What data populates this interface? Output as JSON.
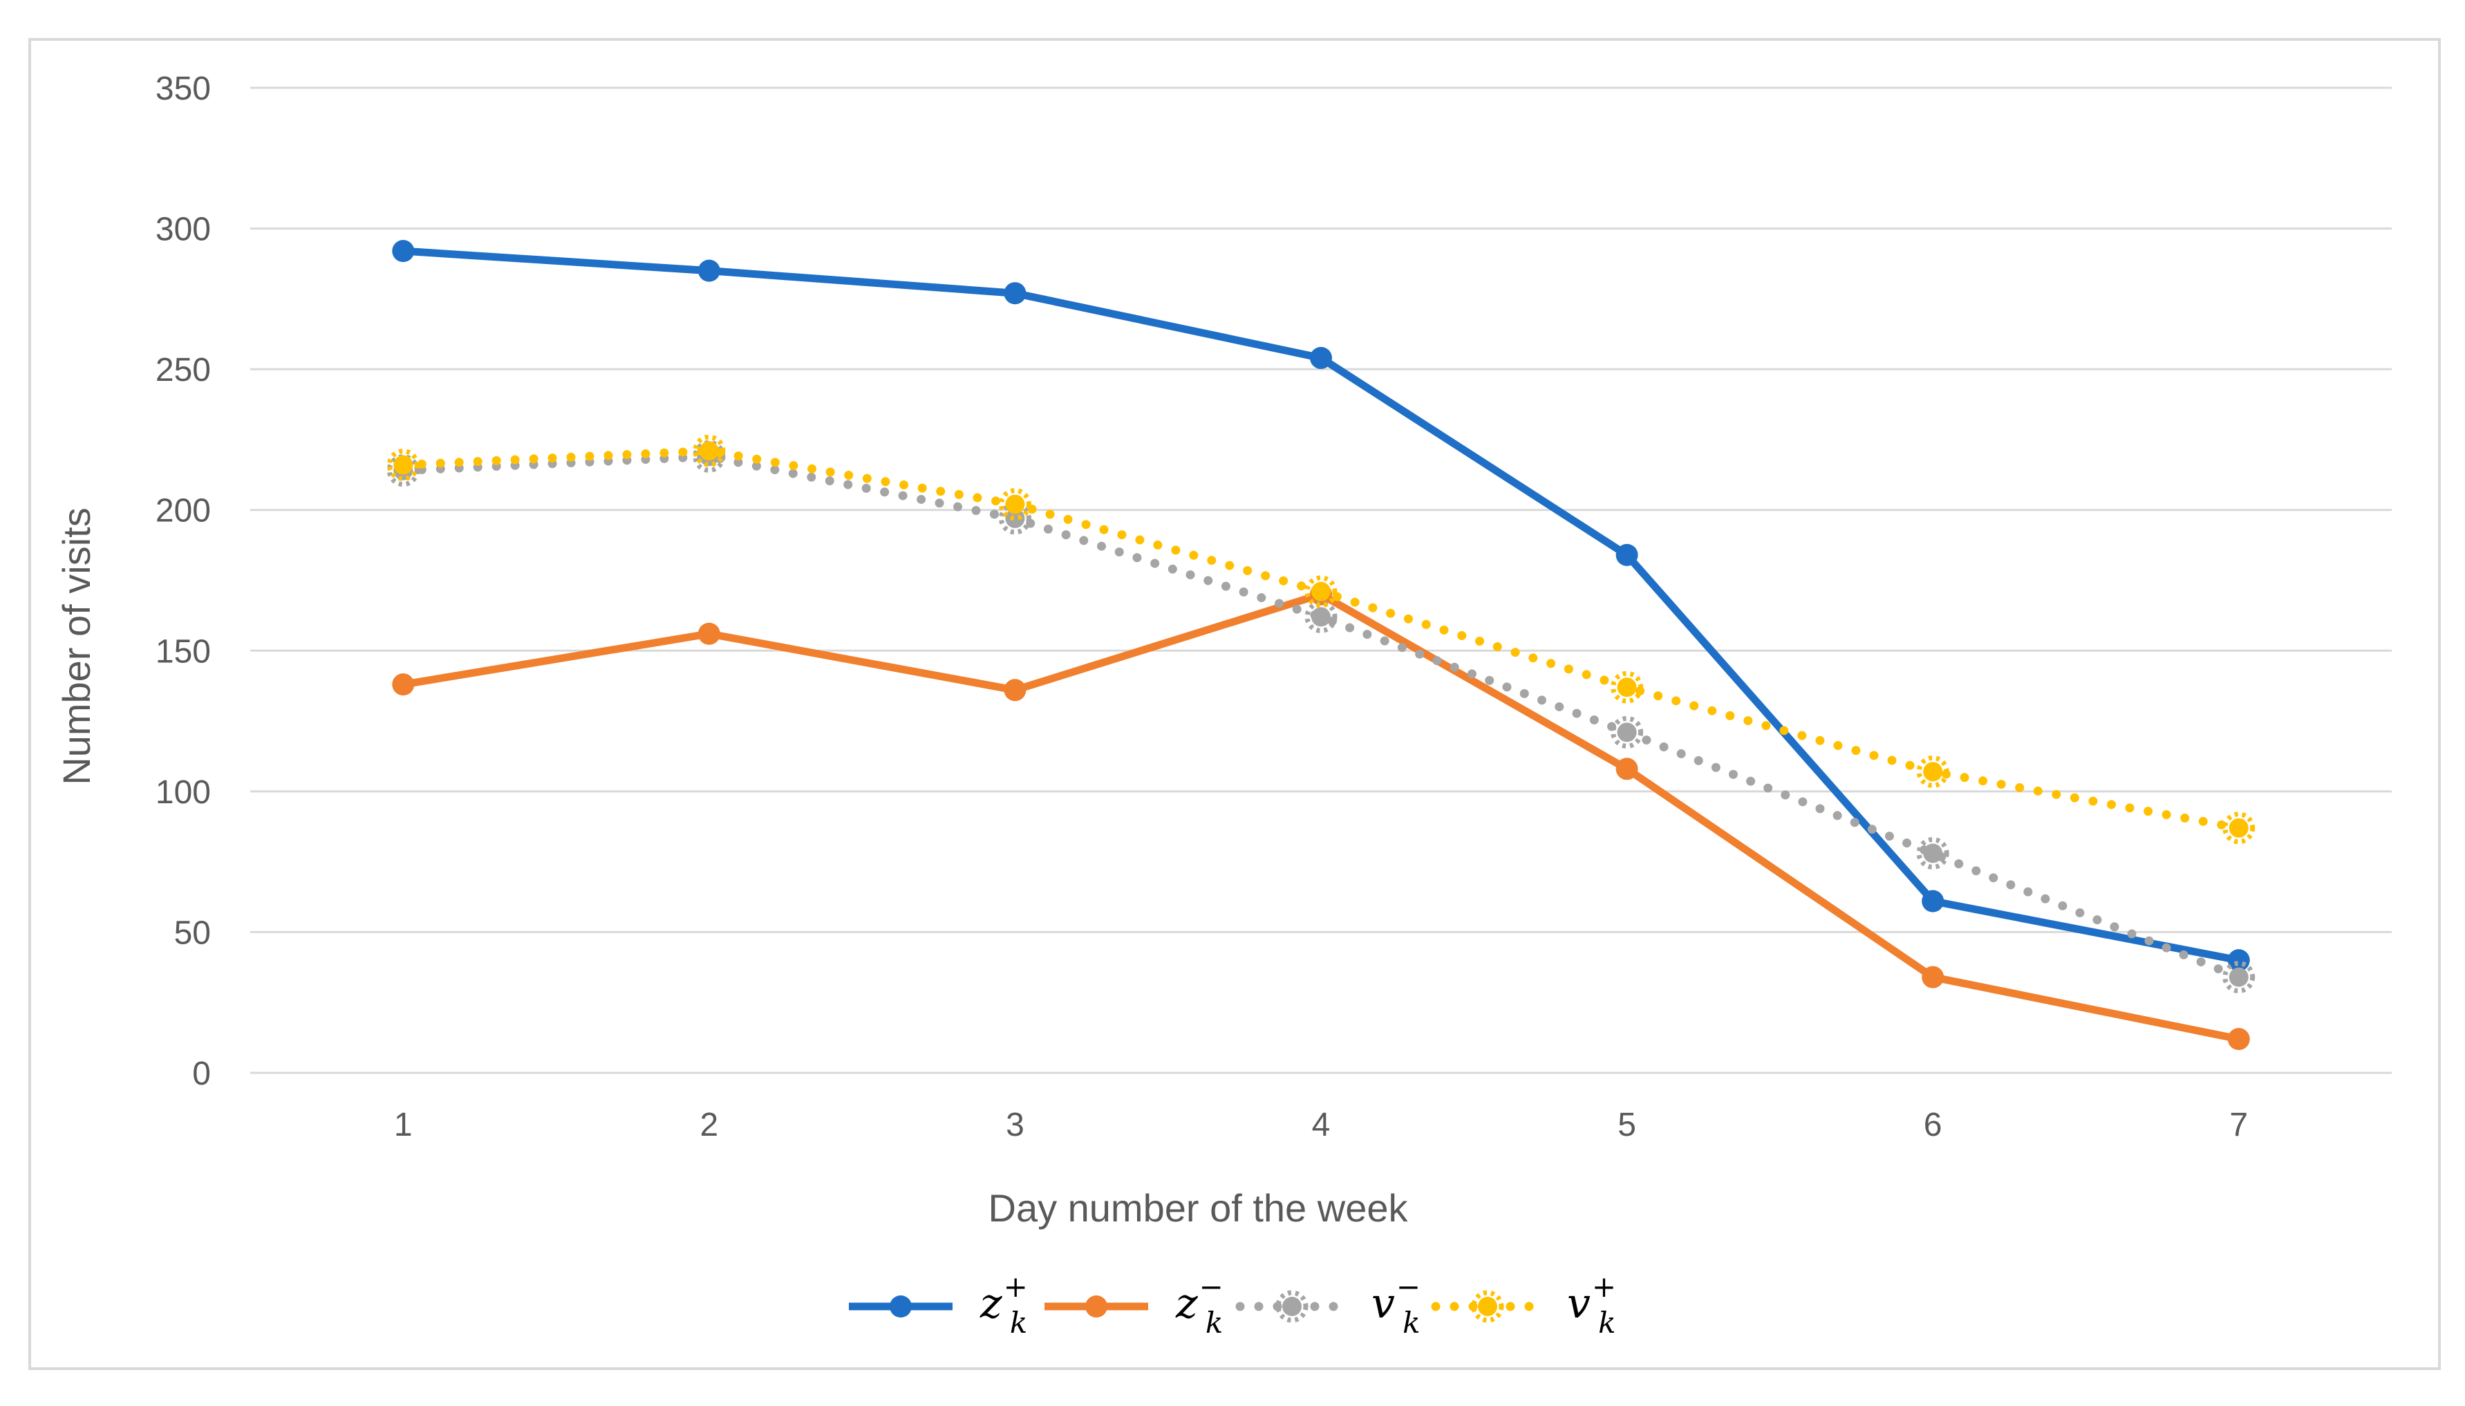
{
  "chart_data": {
    "type": "line",
    "title": "",
    "xlabel": "Day number of the week",
    "ylabel": "Number of visits",
    "categories": [
      "1",
      "2",
      "3",
      "4",
      "5",
      "6",
      "7"
    ],
    "ylim": [
      0,
      350
    ],
    "yticks": [
      0,
      50,
      100,
      150,
      200,
      250,
      300,
      350
    ],
    "grid": true,
    "legend_position": "bottom",
    "series": [
      {
        "name": "z_k^+",
        "symbol": "z",
        "sup": "+",
        "sub": "k",
        "color": "#1f6fc6",
        "style": "solid",
        "values": [
          292,
          285,
          277,
          254,
          184,
          61,
          40
        ]
      },
      {
        "name": "z_k^-",
        "symbol": "z",
        "sup": "−",
        "sub": "k",
        "color": "#f07f2e",
        "style": "solid",
        "values": [
          138,
          156,
          136,
          170,
          108,
          34,
          12
        ]
      },
      {
        "name": "v_k^-",
        "symbol": "v",
        "sup": "−",
        "sub": "k",
        "color": "#a5a5a5",
        "style": "dotted",
        "values": [
          214,
          219,
          197,
          162,
          121,
          78,
          34
        ]
      },
      {
        "name": "v_k^+",
        "symbol": "v",
        "sup": "+",
        "sub": "k",
        "color": "#ffc000",
        "style": "dotted",
        "values": [
          216,
          221,
          202,
          171,
          137,
          107,
          87
        ]
      }
    ]
  }
}
